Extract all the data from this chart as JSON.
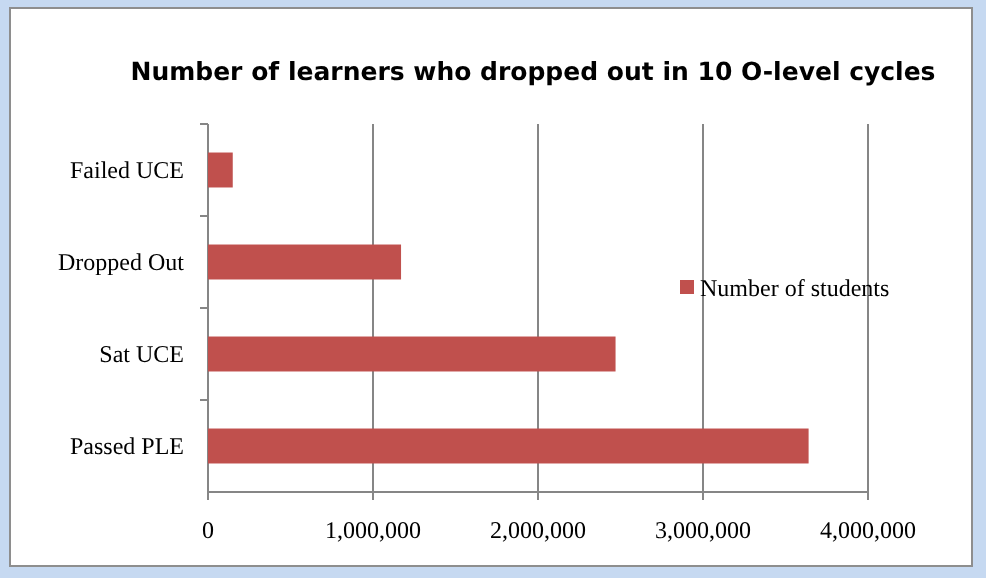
{
  "chart_data": {
    "type": "bar",
    "orientation": "horizontal",
    "title": "Number of learners who dropped out in 10 O-level cycles",
    "categories": [
      "Failed UCE",
      "Dropped Out",
      "Sat UCE",
      "Passed PLE"
    ],
    "series": [
      {
        "name": "Number of students",
        "color": "#c0504d",
        "values": [
          150000,
          1170000,
          2470000,
          3640000
        ]
      }
    ],
    "xlim": [
      0,
      4000000
    ],
    "xticks": [
      {
        "value": 0,
        "label": "0"
      },
      {
        "value": 1000000,
        "label": "1,000,000"
      },
      {
        "value": 2000000,
        "label": "2,000,000"
      },
      {
        "value": 3000000,
        "label": "3,000,000"
      },
      {
        "value": 4000000,
        "label": "4,000,000"
      }
    ],
    "grid": "x",
    "legend": "right"
  }
}
